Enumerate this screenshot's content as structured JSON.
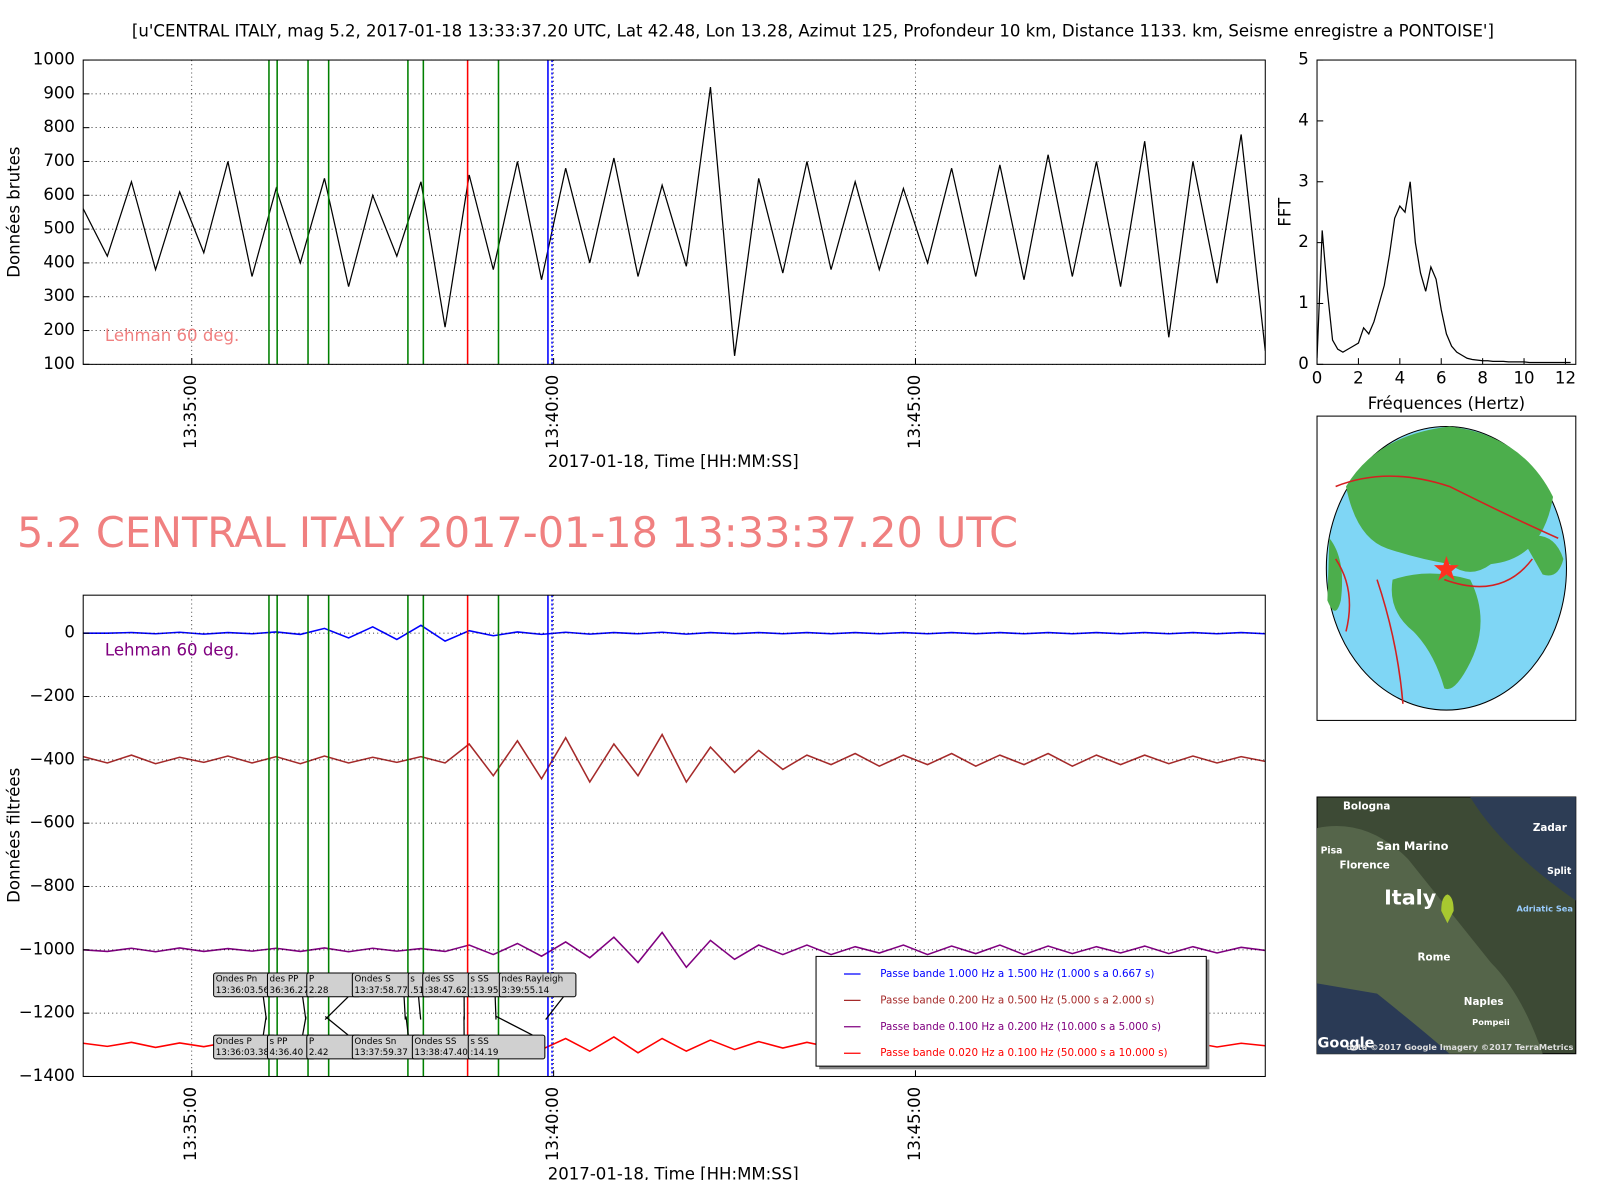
{
  "heading": "5.2 CENTRAL ITALY 2017-01-18 13:33:37.20 UTC",
  "chart_data": [
    {
      "type": "line",
      "title": "[u'CENTRAL ITALY, mag 5.2, 2017-01-18 13:33:37.20 UTC, Lat 42.48, Lon 13.28, Azimut 125, Profondeur 10 km, Distance 1133. km, Seisme enregistre a PONTOISE']",
      "ylabel": "Données brutes",
      "xlabel": "2017-01-18, Time [HH:MM:SS]",
      "color": "#000000",
      "grid": true,
      "xlim": [
        48810,
        49790
      ],
      "ylim": [
        100,
        1000
      ],
      "xticks": [
        {
          "value": 48900,
          "label": "13:35:00"
        },
        {
          "value": 49200,
          "label": "13:40:00"
        },
        {
          "value": 49500,
          "label": "13:45:00"
        }
      ],
      "yticks": [
        100,
        200,
        300,
        400,
        500,
        600,
        700,
        800,
        900,
        1000
      ],
      "x": [
        48810,
        48830,
        48850,
        48870,
        48890,
        48910,
        48930,
        48950,
        48970,
        48990,
        49010,
        49030,
        49050,
        49070,
        49090,
        49110,
        49130,
        49150,
        49170,
        49190,
        49210,
        49230,
        49250,
        49270,
        49290,
        49310,
        49330,
        49350,
        49370,
        49390,
        49410,
        49430,
        49450,
        49470,
        49490,
        49510,
        49530,
        49550,
        49570,
        49590,
        49610,
        49630,
        49650,
        49670,
        49690,
        49710,
        49730,
        49750,
        49770,
        49790
      ],
      "values": [
        560,
        420,
        640,
        380,
        610,
        430,
        700,
        360,
        620,
        400,
        650,
        330,
        600,
        420,
        640,
        210,
        660,
        380,
        700,
        350,
        680,
        400,
        710,
        360,
        630,
        390,
        920,
        125,
        650,
        370,
        700,
        380,
        640,
        380,
        620,
        400,
        680,
        360,
        690,
        350,
        720,
        360,
        700,
        330,
        760,
        180,
        700,
        340,
        780,
        140
      ],
      "annotation": {
        "text": "Lehman 60 deg.",
        "color": "#f08080"
      },
      "markers": [
        {
          "x": 48964.0,
          "color": "#008000"
        },
        {
          "x": 48970.8,
          "color": "#008000"
        },
        {
          "x": 48996.4,
          "color": "#008000"
        },
        {
          "x": 49013.5,
          "color": "#008000"
        },
        {
          "x": 49079.2,
          "color": "#008000"
        },
        {
          "x": 49092.0,
          "color": "#008000"
        },
        {
          "x": 49128.7,
          "color": "#ff0000"
        },
        {
          "x": 49154.3,
          "color": "#008000"
        },
        {
          "x": 49195.3,
          "color": "#0000ff"
        },
        {
          "x": 49198.7,
          "color": "#0000ff",
          "dash": true
        }
      ]
    },
    {
      "type": "line",
      "ylabel": "FFT",
      "xlabel": "Fréquences (Hertz)",
      "color": "#000000",
      "grid": false,
      "xlim": [
        0,
        12.5
      ],
      "ylim": [
        0,
        5
      ],
      "xticks": [
        0,
        2,
        4,
        6,
        8,
        10,
        12
      ],
      "yticks": [
        0,
        1,
        2,
        3,
        4,
        5
      ],
      "x": [
        0,
        0.25,
        0.5,
        0.75,
        1,
        1.25,
        1.5,
        1.75,
        2,
        2.25,
        2.5,
        2.75,
        3,
        3.25,
        3.5,
        3.75,
        4,
        4.25,
        4.5,
        4.75,
        5,
        5.25,
        5.5,
        5.75,
        6,
        6.25,
        6.5,
        6.75,
        7,
        7.25,
        7.5,
        7.75,
        8,
        8.25,
        8.5,
        8.75,
        9,
        9.25,
        9.5,
        9.75,
        10,
        10.25,
        10.5,
        10.75,
        11,
        11.25,
        11.5,
        11.75,
        12,
        12.25
      ],
      "values": [
        0.1,
        2.2,
        1.2,
        0.4,
        0.25,
        0.2,
        0.25,
        0.3,
        0.35,
        0.6,
        0.5,
        0.7,
        1.0,
        1.3,
        1.8,
        2.4,
        2.6,
        2.5,
        3.0,
        2.0,
        1.5,
        1.2,
        1.6,
        1.4,
        0.9,
        0.5,
        0.3,
        0.2,
        0.15,
        0.1,
        0.08,
        0.07,
        0.06,
        0.06,
        0.05,
        0.05,
        0.05,
        0.04,
        0.04,
        0.04,
        0.04,
        0.03,
        0.03,
        0.03,
        0.03,
        0.03,
        0.03,
        0.03,
        0.03,
        0.03
      ]
    },
    {
      "type": "multiline",
      "ylabel": "Données filtrées",
      "xlabel": "2017-01-18, Time [HH:MM:SS]",
      "grid": true,
      "legend": "lower right",
      "xlim": [
        48810,
        49790
      ],
      "ylim": [
        -1400,
        120
      ],
      "xticks": [
        {
          "value": 48900,
          "label": "13:35:00"
        },
        {
          "value": 49200,
          "label": "13:40:00"
        },
        {
          "value": 49500,
          "label": "13:45:00"
        }
      ],
      "yticks": [
        {
          "value": 0,
          "label": "0"
        },
        {
          "value": -200,
          "label": "−200"
        },
        {
          "value": -400,
          "label": "−400"
        },
        {
          "value": -600,
          "label": "−600"
        },
        {
          "value": -800,
          "label": "−800"
        },
        {
          "value": -1000,
          "label": "−1000"
        },
        {
          "value": -1200,
          "label": "−1200"
        },
        {
          "value": -1400,
          "label": "−1400"
        }
      ],
      "x": [
        48810,
        48830,
        48850,
        48870,
        48890,
        48910,
        48930,
        48950,
        48970,
        48990,
        49010,
        49030,
        49050,
        49070,
        49090,
        49110,
        49130,
        49150,
        49170,
        49190,
        49210,
        49230,
        49250,
        49270,
        49290,
        49310,
        49330,
        49350,
        49370,
        49390,
        49410,
        49430,
        49450,
        49470,
        49490,
        49510,
        49530,
        49550,
        49570,
        49590,
        49610,
        49630,
        49650,
        49670,
        49690,
        49710,
        49730,
        49750,
        49770,
        49790
      ],
      "series": [
        {
          "name": "Passe bande 1.000 Hz a 1.500 Hz (1.000 s a 0.667 s)",
          "color": "#0000ff",
          "values": [
            0,
            0,
            2,
            -2,
            3,
            -3,
            2,
            -2,
            4,
            -4,
            15,
            -15,
            20,
            -20,
            25,
            -25,
            8,
            -8,
            4,
            -4,
            3,
            -3,
            2,
            -2,
            3,
            -3,
            2,
            -2,
            2,
            -2,
            2,
            -2,
            2,
            -2,
            2,
            -2,
            2,
            -2,
            2,
            -2,
            2,
            -2,
            2,
            -2,
            2,
            -2,
            2,
            -2,
            2,
            -2
          ]
        },
        {
          "name": "Passe bande 0.200 Hz a 0.500 Hz (5.000 s a 2.000 s)",
          "color": "#a52a2a",
          "values": [
            -390,
            -410,
            -385,
            -412,
            -392,
            -408,
            -388,
            -410,
            -390,
            -412,
            -388,
            -410,
            -392,
            -408,
            -390,
            -410,
            -350,
            -450,
            -340,
            -460,
            -330,
            -470,
            -350,
            -450,
            -320,
            -470,
            -360,
            -440,
            -370,
            -430,
            -385,
            -415,
            -380,
            -420,
            -385,
            -415,
            -380,
            -420,
            -385,
            -415,
            -380,
            -420,
            -385,
            -415,
            -385,
            -412,
            -388,
            -410,
            -390,
            -405
          ]
        },
        {
          "name": "Passe bande 0.100 Hz a 0.200 Hz (10.000 s a 5.000 s)",
          "color": "#800080",
          "values": [
            -1000,
            -1005,
            -995,
            -1006,
            -994,
            -1005,
            -996,
            -1004,
            -995,
            -1005,
            -994,
            -1006,
            -995,
            -1004,
            -996,
            -1005,
            -985,
            -1015,
            -980,
            -1020,
            -975,
            -1025,
            -960,
            -1040,
            -945,
            -1055,
            -970,
            -1030,
            -985,
            -1015,
            -985,
            -1015,
            -990,
            -1010,
            -985,
            -1015,
            -988,
            -1012,
            -985,
            -1015,
            -988,
            -1012,
            -990,
            -1010,
            -988,
            -1012,
            -990,
            -1010,
            -992,
            -1002
          ]
        },
        {
          "name": "Passe bande 0.020 Hz a 0.100 Hz (50.000 s a 10.000 s)",
          "color": "#ff0000",
          "values": [
            -1295,
            -1305,
            -1292,
            -1308,
            -1294,
            -1306,
            -1292,
            -1308,
            -1295,
            -1305,
            -1293,
            -1307,
            -1294,
            -1306,
            -1292,
            -1308,
            -1288,
            -1312,
            -1285,
            -1315,
            -1280,
            -1320,
            -1275,
            -1325,
            -1280,
            -1320,
            -1285,
            -1315,
            -1290,
            -1310,
            -1292,
            -1308,
            -1290,
            -1310,
            -1292,
            -1308,
            -1290,
            -1310,
            -1292,
            -1308,
            -1293,
            -1307,
            -1292,
            -1308,
            -1294,
            -1306,
            -1293,
            -1307,
            -1295,
            -1303
          ]
        }
      ],
      "annotation": {
        "text": "Lehman 60 deg.",
        "color": "#800080"
      },
      "markers": [
        {
          "x": 48964.0,
          "color": "#008000"
        },
        {
          "x": 48970.8,
          "color": "#008000"
        },
        {
          "x": 48996.4,
          "color": "#008000"
        },
        {
          "x": 49013.5,
          "color": "#008000"
        },
        {
          "x": 49079.2,
          "color": "#008000"
        },
        {
          "x": 49092.0,
          "color": "#008000"
        },
        {
          "x": 49128.7,
          "color": "#ff0000"
        },
        {
          "x": 49154.3,
          "color": "#008000"
        },
        {
          "x": 49195.3,
          "color": "#0000ff"
        },
        {
          "x": 49198.7,
          "color": "#0000ff",
          "dash": true
        }
      ],
      "arrivals_upper": [
        {
          "text": [
            "Ondes Pn",
            "13:36:03.56"
          ],
          "x": 48963.56
        },
        {
          "text": [
            "des PP",
            "36:36.27"
          ],
          "x": 48996.27
        },
        {
          "text": [
            "P",
            "2.28"
          ],
          "x": 49012.28
        },
        {
          "text": [
            "Ondes S",
            "13:37:58.77"
          ],
          "x": 49078.77
        },
        {
          "text": [
            "s",
            ".51"
          ],
          "x": 49091.51
        },
        {
          "text": [
            "des SS",
            ":38:47.62"
          ],
          "x": 49127.62
        },
        {
          "text": [
            "s SS",
            ":13.95"
          ],
          "x": 49153.95
        },
        {
          "text": [
            "ndes Rayleigh",
            "3:39:55.14"
          ],
          "x": 49195.14
        }
      ],
      "arrivals_lower": [
        {
          "text": [
            "Ondes P",
            "13:36:03.38"
          ],
          "x": 48963.38
        },
        {
          "text": [
            "s PP",
            "4:36.40"
          ],
          "x": 48996.4
        },
        {
          "text": [
            "P",
            "2.42"
          ],
          "x": 49012.42
        },
        {
          "text": [
            "Ondes Sn",
            "13:37:59.37"
          ],
          "x": 49079.37
        },
        {
          "text": [
            "Ondes SS",
            "13:38:47.40"
          ],
          "x": 49127.4
        },
        {
          "text": [
            "s SS",
            ":14.19"
          ],
          "x": 49154.19
        }
      ]
    }
  ],
  "map": {
    "labels": [
      "Bologna",
      "Zadar",
      "Pisa",
      "San Marino",
      "Florence",
      "Split",
      "Italy",
      "Adriatic Sea",
      "Rome",
      "Naples",
      "Pompeii",
      "Google",
      "data ©2017 Google  Imagery ©2017 TerraMetrics"
    ]
  }
}
